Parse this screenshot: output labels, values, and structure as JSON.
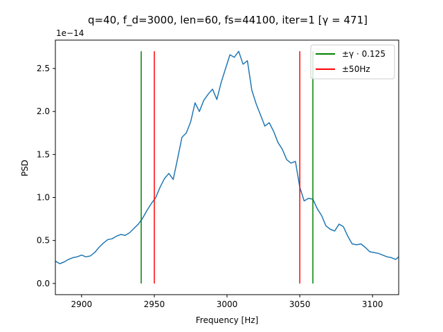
{
  "chart_data": {
    "type": "line",
    "title": "q=40, f_d=3000, len=60, fs=44100, iter=1 [γ = 471]",
    "xlabel": "Frequency [Hz]",
    "ylabel": "PSD",
    "y_offset_text": "1e−14",
    "xlim": [
      2882,
      3118
    ],
    "ylim": [
      -0.13,
      2.83
    ],
    "y_scale_exponent": -14,
    "grid": false,
    "legend_position": "top-right",
    "x_ticks": [
      {
        "value": 2900,
        "label": "2900"
      },
      {
        "value": 2950,
        "label": "2950"
      },
      {
        "value": 3000,
        "label": "3000"
      },
      {
        "value": 3050,
        "label": "3050"
      },
      {
        "value": 3100,
        "label": "3100"
      }
    ],
    "y_ticks": [
      {
        "value": 0.0,
        "label": "0.0"
      },
      {
        "value": 0.5,
        "label": "0.5"
      },
      {
        "value": 1.0,
        "label": "1.0"
      },
      {
        "value": 1.5,
        "label": "1.5"
      },
      {
        "value": 2.0,
        "label": "2.0"
      },
      {
        "value": 2.5,
        "label": "2.5"
      }
    ],
    "series": [
      {
        "color": "#1f77b4",
        "x": [
          2882,
          2885,
          2888,
          2891,
          2894,
          2897,
          2900,
          2903,
          2906,
          2909,
          2912,
          2915,
          2918,
          2921,
          2924,
          2927,
          2930,
          2933,
          2936,
          2939,
          2942,
          2945,
          2948,
          2951,
          2954,
          2957,
          2960,
          2963,
          2966,
          2969,
          2972,
          2975,
          2978,
          2981,
          2984,
          2987,
          2990,
          2993,
          2996,
          2999,
          3002,
          3005,
          3008,
          3011,
          3014,
          3017,
          3020,
          3023,
          3026,
          3029,
          3032,
          3035,
          3038,
          3041,
          3044,
          3047,
          3050,
          3053,
          3056,
          3059,
          3062,
          3065,
          3068,
          3071,
          3074,
          3077,
          3080,
          3083,
          3086,
          3089,
          3092,
          3095,
          3098,
          3101,
          3104,
          3107,
          3110,
          3113,
          3116,
          3118
        ],
        "y": [
          0.26,
          0.23,
          0.25,
          0.28,
          0.3,
          0.31,
          0.33,
          0.31,
          0.32,
          0.36,
          0.42,
          0.47,
          0.51,
          0.52,
          0.55,
          0.57,
          0.56,
          0.59,
          0.64,
          0.69,
          0.76,
          0.85,
          0.93,
          1.0,
          1.12,
          1.22,
          1.28,
          1.21,
          1.45,
          1.7,
          1.75,
          1.88,
          2.1,
          2.0,
          2.13,
          2.2,
          2.26,
          2.14,
          2.34,
          2.5,
          2.66,
          2.63,
          2.7,
          2.55,
          2.59,
          2.25,
          2.09,
          1.96,
          1.83,
          1.87,
          1.77,
          1.64,
          1.56,
          1.44,
          1.4,
          1.42,
          1.12,
          0.96,
          0.99,
          0.98,
          0.87,
          0.79,
          0.67,
          0.63,
          0.61,
          0.69,
          0.66,
          0.55,
          0.46,
          0.45,
          0.46,
          0.42,
          0.37,
          0.36,
          0.35,
          0.33,
          0.31,
          0.3,
          0.28,
          0.31
        ]
      }
    ],
    "vertical_lines": [
      {
        "x": 2941,
        "y_from": 0,
        "y_to": 2.7,
        "color": "#008000"
      },
      {
        "x": 3059,
        "y_from": 0,
        "y_to": 2.7,
        "color": "#008000"
      },
      {
        "x": 2950,
        "y_from": 0,
        "y_to": 2.7,
        "color": "#ff0000"
      },
      {
        "x": 3050,
        "y_from": 0,
        "y_to": 2.7,
        "color": "#ff0000"
      }
    ],
    "legend": [
      {
        "label": "±γ · 0.125",
        "color": "#008000"
      },
      {
        "label": "±50Hz",
        "color": "#ff0000"
      }
    ]
  }
}
